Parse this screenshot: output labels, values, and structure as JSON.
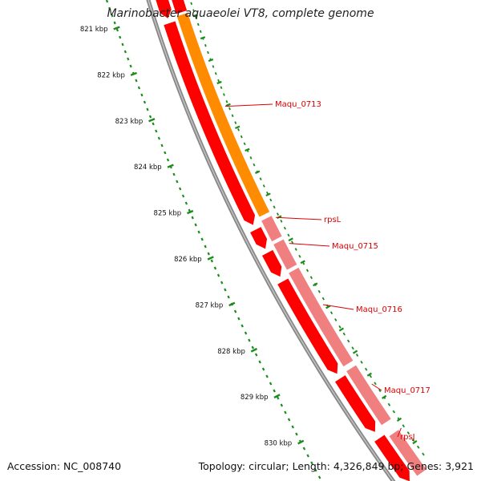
{
  "title": "Marinobacter aquaeolei VT8, complete genome",
  "footer": {
    "accession": "Accession: NC_008740",
    "topology": "Topology: circular; Length: 4,326,849 bp; Genes: 3,921"
  },
  "ruler_ticks": [
    {
      "label": "821 kbp",
      "kbp": 821
    },
    {
      "label": "822 kbp",
      "kbp": 822
    },
    {
      "label": "823 kbp",
      "kbp": 823
    },
    {
      "label": "824 kbp",
      "kbp": 824
    },
    {
      "label": "825 kbp",
      "kbp": 825
    },
    {
      "label": "826 kbp",
      "kbp": 826
    },
    {
      "label": "827 kbp",
      "kbp": 827
    },
    {
      "label": "828 kbp",
      "kbp": 828
    },
    {
      "label": "829 kbp",
      "kbp": 829
    },
    {
      "label": "830 kbp",
      "kbp": 830
    }
  ],
  "gene_labels": [
    {
      "name": "Maqu_0713"
    },
    {
      "name": "rpsL"
    },
    {
      "name": "Maqu_0715"
    },
    {
      "name": "Maqu_0716"
    },
    {
      "name": "Maqu_0717"
    },
    {
      "name": "rpsJ"
    }
  ],
  "colors": {
    "cds": "#ff0000",
    "gene_primary": "#ff8c00",
    "gene_secondary": "#f08080",
    "ruler": "#1a8c1a",
    "backbone": "#888888",
    "label": "#dd0000"
  }
}
